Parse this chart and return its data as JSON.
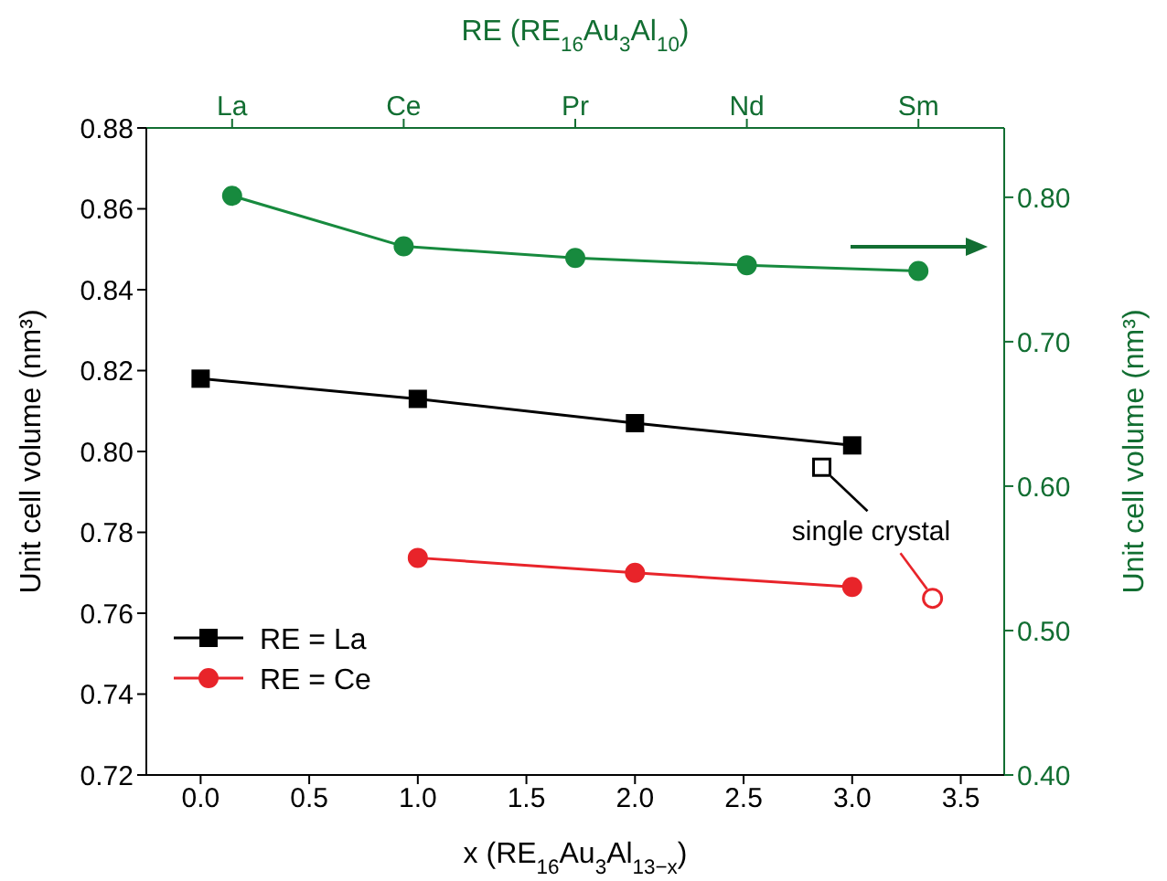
{
  "chart_data": [
    {
      "type": "line",
      "categories": [
        "La",
        "Ce",
        "Pr",
        "Nd",
        "Sm"
      ],
      "xlabel": "RE (RE$_{16}$Au$_{3}$Al$_{10}$)",
      "ylabel": "Unit cell volume (nm³)",
      "ylim": [
        0.4,
        0.848
      ],
      "yticks": [
        {
          "value": 0.4,
          "label": "0.40"
        },
        {
          "value": 0.5,
          "label": "0.50"
        },
        {
          "value": 0.6,
          "label": "0.60"
        },
        {
          "value": 0.7,
          "label": "0.70"
        },
        {
          "value": 0.8,
          "label": "0.80"
        }
      ],
      "series": [
        {
          "color": "#178a3e",
          "marker": "circle",
          "values": [
            0.801,
            0.766,
            0.758,
            0.753,
            0.749
          ]
        }
      ],
      "grid": false
    },
    {
      "type": "line",
      "xlabel": "x (RE$_{16}$Au$_{3}$Al$_{13−x}$)",
      "ylabel": "Unit cell volume (nm³)",
      "xlim": [
        -0.25,
        3.7
      ],
      "xticks": [
        {
          "value": 0,
          "label": "0.0"
        },
        {
          "value": 0.5,
          "label": "0.5"
        },
        {
          "value": 1,
          "label": "1.0"
        },
        {
          "value": 1.5,
          "label": "1.5"
        },
        {
          "value": 2,
          "label": "2.0"
        },
        {
          "value": 2.5,
          "label": "2.5"
        },
        {
          "value": 3,
          "label": "3.0"
        },
        {
          "value": 3.5,
          "label": "3.5"
        }
      ],
      "ylim": [
        0.72,
        0.88
      ],
      "yticks": [
        0.72,
        0.74,
        0.76,
        0.78,
        {
          "value": 0.8,
          "label": "0.80"
        },
        0.82,
        0.84,
        0.86,
        0.88
      ],
      "series": [
        {
          "name": "RE = La",
          "color": "#000000",
          "marker": "square",
          "x": [
            0,
            1,
            2,
            3
          ],
          "values": [
            0.818,
            0.813,
            0.807,
            0.8015
          ]
        },
        {
          "name": "RE = Ce",
          "color": "#e8242a",
          "marker": "circle",
          "x": [
            1,
            2,
            3
          ],
          "values": [
            0.7737,
            0.77,
            0.7665
          ]
        },
        {
          "type": "scatter",
          "color": "#000000",
          "marker": "square",
          "x": [
            2.86
          ],
          "values": [
            0.7961
          ]
        },
        {
          "type": "scatter",
          "color": "#e8242a",
          "marker": "circle",
          "x": [
            3.37
          ],
          "values": [
            0.7637
          ]
        }
      ],
      "annotations": [
        {
          "text": "single crystal",
          "x": 2.86,
          "y": 0.7961
        }
      ],
      "legend": "bottom left",
      "grid": false
    }
  ]
}
